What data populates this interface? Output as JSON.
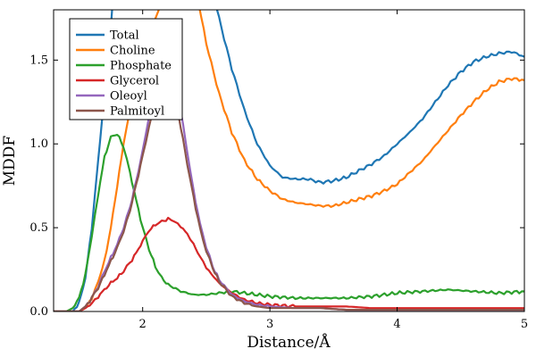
{
  "chart_data": {
    "type": "line",
    "xlabel": "Distance/Å",
    "ylabel": "MDDF",
    "xlim": [
      1.3,
      5.0
    ],
    "ylim": [
      0.0,
      1.8
    ],
    "x_ticks": [
      2,
      3,
      4,
      5
    ],
    "x_tick_labels": [
      "2",
      "3",
      "4",
      "5"
    ],
    "y_ticks": [
      0.0,
      0.5,
      1.0,
      1.5
    ],
    "y_tick_labels": [
      "0.0",
      "0.5",
      "1.0",
      "1.5"
    ],
    "grid": false,
    "legend_position": "top-left",
    "series": [
      {
        "name": "Total",
        "color": "#1f77b4",
        "x": [
          1.3,
          1.45,
          1.5,
          1.55,
          1.6,
          1.65,
          1.7,
          1.75,
          1.8,
          2.5,
          2.6,
          2.7,
          2.8,
          2.9,
          3.0,
          3.1,
          3.2,
          3.3,
          3.4,
          3.5,
          3.6,
          3.7,
          3.8,
          3.9,
          4.0,
          4.1,
          4.2,
          4.3,
          4.4,
          4.5,
          4.6,
          4.7,
          4.8,
          4.9,
          5.0
        ],
        "values": [
          0.0,
          0.0,
          0.05,
          0.2,
          0.5,
          0.9,
          1.3,
          1.7,
          2.2,
          2.1,
          1.75,
          1.45,
          1.2,
          1.0,
          0.87,
          0.8,
          0.79,
          0.79,
          0.77,
          0.78,
          0.8,
          0.84,
          0.88,
          0.93,
          1.0,
          1.07,
          1.15,
          1.25,
          1.35,
          1.43,
          1.49,
          1.52,
          1.54,
          1.55,
          1.52
        ]
      },
      {
        "name": "Choline",
        "color": "#ff7f0e",
        "x": [
          1.3,
          1.5,
          1.55,
          1.6,
          1.65,
          1.7,
          1.75,
          1.8,
          1.85,
          1.9,
          1.95,
          2.0,
          2.05,
          2.1,
          2.15,
          2.4,
          2.5,
          2.6,
          2.7,
          2.8,
          2.9,
          3.0,
          3.1,
          3.2,
          3.3,
          3.4,
          3.5,
          3.6,
          3.7,
          3.8,
          3.9,
          4.0,
          4.1,
          4.2,
          4.3,
          4.4,
          4.5,
          4.6,
          4.7,
          4.8,
          4.9,
          5.0
        ],
        "values": [
          0.0,
          0.0,
          0.02,
          0.08,
          0.18,
          0.3,
          0.5,
          0.75,
          1.0,
          1.2,
          1.4,
          1.55,
          1.65,
          1.75,
          1.85,
          2.0,
          1.6,
          1.3,
          1.07,
          0.9,
          0.79,
          0.72,
          0.67,
          0.65,
          0.64,
          0.63,
          0.63,
          0.65,
          0.67,
          0.69,
          0.72,
          0.76,
          0.83,
          0.9,
          0.99,
          1.08,
          1.17,
          1.25,
          1.32,
          1.37,
          1.39,
          1.38
        ]
      },
      {
        "name": "Phosphate",
        "color": "#2ca02c",
        "x": [
          1.3,
          1.4,
          1.45,
          1.5,
          1.55,
          1.6,
          1.65,
          1.7,
          1.75,
          1.8,
          1.85,
          1.9,
          1.95,
          2.0,
          2.05,
          2.1,
          2.15,
          2.2,
          2.3,
          2.4,
          2.5,
          2.6,
          2.7,
          2.8,
          2.9,
          3.0,
          3.2,
          3.4,
          3.6,
          3.8,
          4.0,
          4.2,
          4.4,
          4.6,
          4.8,
          5.0
        ],
        "values": [
          0.0,
          0.0,
          0.02,
          0.08,
          0.22,
          0.45,
          0.7,
          0.92,
          1.04,
          1.06,
          0.98,
          0.83,
          0.66,
          0.5,
          0.37,
          0.27,
          0.2,
          0.16,
          0.12,
          0.1,
          0.1,
          0.11,
          0.12,
          0.11,
          0.1,
          0.09,
          0.08,
          0.08,
          0.08,
          0.09,
          0.11,
          0.12,
          0.13,
          0.12,
          0.11,
          0.12
        ]
      },
      {
        "name": "Glycerol",
        "color": "#d62728",
        "x": [
          1.3,
          1.5,
          1.55,
          1.6,
          1.65,
          1.7,
          1.75,
          1.8,
          1.85,
          1.9,
          1.95,
          2.0,
          2.05,
          2.1,
          2.15,
          2.2,
          2.25,
          2.3,
          2.35,
          2.4,
          2.45,
          2.5,
          2.6,
          2.7,
          2.8,
          2.9,
          3.0,
          3.2,
          3.4,
          3.6,
          3.8,
          4.0,
          4.5,
          5.0
        ],
        "values": [
          0.0,
          0.0,
          0.02,
          0.05,
          0.09,
          0.13,
          0.17,
          0.2,
          0.24,
          0.29,
          0.35,
          0.42,
          0.48,
          0.52,
          0.54,
          0.55,
          0.54,
          0.51,
          0.46,
          0.4,
          0.33,
          0.26,
          0.17,
          0.11,
          0.07,
          0.05,
          0.04,
          0.03,
          0.03,
          0.03,
          0.02,
          0.02,
          0.02,
          0.02
        ]
      },
      {
        "name": "Oleoyl",
        "color": "#9467bd",
        "x": [
          1.3,
          1.5,
          1.55,
          1.6,
          1.65,
          1.7,
          1.75,
          1.8,
          1.85,
          1.9,
          1.95,
          2.0,
          2.05,
          2.1,
          2.15,
          2.2,
          2.25,
          2.3,
          2.35,
          2.4,
          2.45,
          2.5,
          2.55,
          2.6,
          2.7,
          2.8,
          2.9,
          3.0,
          3.2,
          3.4,
          3.6,
          3.8,
          4.0,
          4.5,
          5.0
        ],
        "values": [
          0.0,
          0.0,
          0.03,
          0.08,
          0.15,
          0.24,
          0.32,
          0.4,
          0.5,
          0.62,
          0.78,
          0.96,
          1.16,
          1.35,
          1.5,
          1.57,
          1.45,
          1.2,
          0.95,
          0.72,
          0.53,
          0.38,
          0.27,
          0.19,
          0.1,
          0.06,
          0.04,
          0.03,
          0.02,
          0.02,
          0.01,
          0.01,
          0.01,
          0.01,
          0.01
        ]
      },
      {
        "name": "Palmitoyl",
        "color": "#8c564b",
        "x": [
          1.3,
          1.5,
          1.55,
          1.6,
          1.65,
          1.7,
          1.75,
          1.8,
          1.85,
          1.9,
          1.95,
          2.0,
          2.05,
          2.1,
          2.15,
          2.2,
          2.25,
          2.3,
          2.35,
          2.4,
          2.45,
          2.5,
          2.55,
          2.6,
          2.7,
          2.8,
          2.9,
          3.0,
          3.2,
          3.4,
          3.6,
          3.8,
          4.0,
          4.5,
          5.0
        ],
        "values": [
          0.0,
          0.0,
          0.03,
          0.08,
          0.14,
          0.22,
          0.3,
          0.38,
          0.48,
          0.6,
          0.76,
          0.93,
          1.1,
          1.25,
          1.35,
          1.38,
          1.3,
          1.1,
          0.88,
          0.68,
          0.5,
          0.36,
          0.26,
          0.18,
          0.09,
          0.05,
          0.03,
          0.02,
          0.02,
          0.02,
          0.01,
          0.01,
          0.01,
          0.01,
          0.01
        ]
      }
    ]
  }
}
